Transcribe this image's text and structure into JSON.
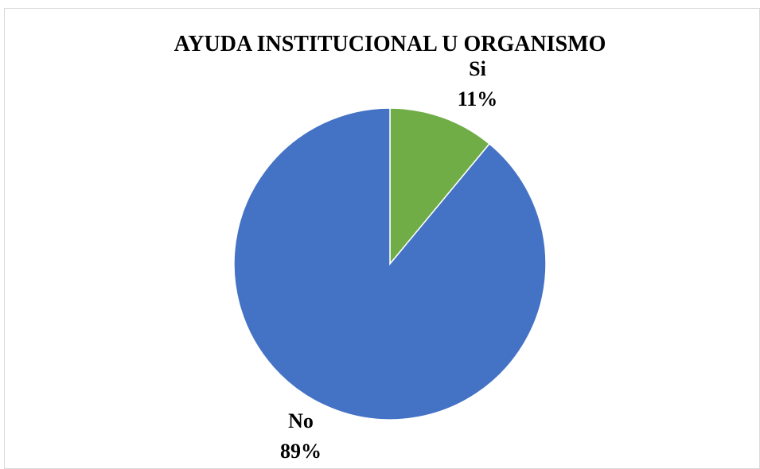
{
  "chart_data": {
    "type": "pie",
    "title": "AYUDA INSTITUCIONAL U ORGANISMO",
    "categories": [
      "Si",
      "No"
    ],
    "values": [
      11,
      89
    ],
    "percent_labels": [
      "11%",
      "89%"
    ],
    "colors": [
      "#70ad47",
      "#4472c4"
    ],
    "legend": "none"
  }
}
